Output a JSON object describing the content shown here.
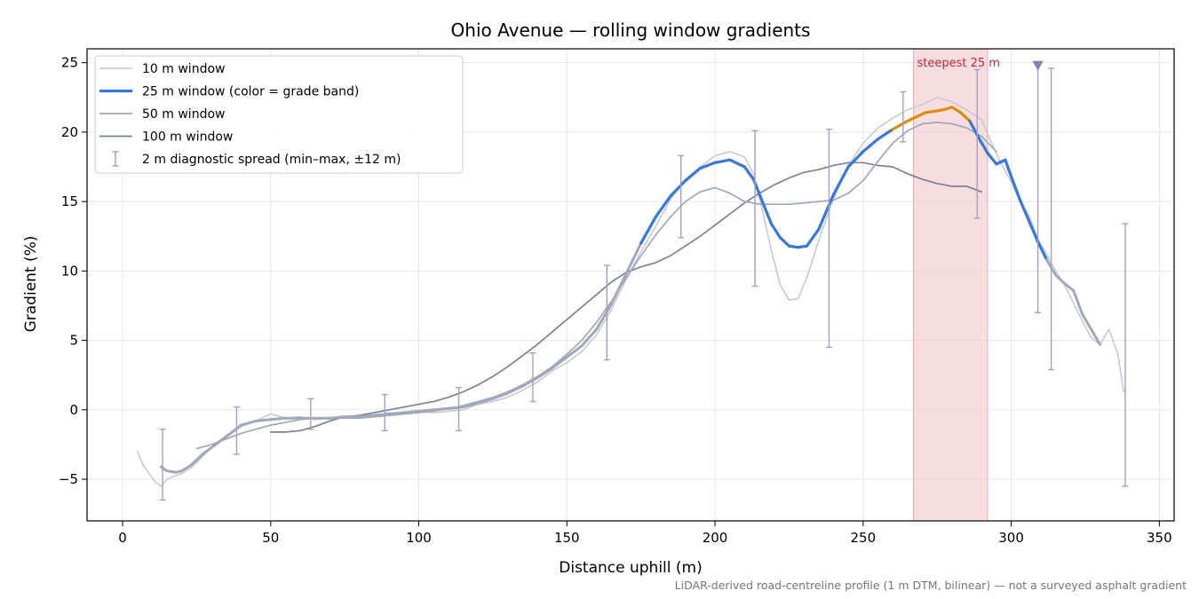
{
  "chart_data": {
    "type": "line",
    "title": "Ohio Avenue — rolling window gradients",
    "xlabel": "Distance uphill (m)",
    "ylabel": "Gradient (%)",
    "xlim": [
      -12,
      355
    ],
    "ylim": [
      -8,
      26
    ],
    "xticks": [
      0,
      50,
      100,
      150,
      200,
      250,
      300,
      350
    ],
    "yticks": [
      -5,
      0,
      5,
      10,
      15,
      20,
      25
    ],
    "grid": true,
    "legend_position": "top-left",
    "footnote": "LiDAR-derived road-centreline profile (1 m DTM, bilinear) — not a surveyed asphalt gradient",
    "steepest_band": {
      "x0": 267,
      "x1": 292,
      "label": "steepest 25 m"
    },
    "marker": {
      "x": 309,
      "y": 24.8
    },
    "colors": {
      "w10": "#c7cad3",
      "w25_normal": "#3a78d6",
      "w25_steep": "#e08c00",
      "w50": "#a1a9b8",
      "w100": "#7c8294",
      "errorbar": "#a79ec4",
      "band": "#f3d2d6",
      "marker": "#8a7fb0"
    },
    "legend": [
      {
        "key": "w10",
        "label": "10 m window"
      },
      {
        "key": "w25",
        "label": "25 m window (color = grade band)"
      },
      {
        "key": "w50",
        "label": "50 m window"
      },
      {
        "key": "w100",
        "label": "100 m window"
      },
      {
        "key": "err",
        "label": "2 m diagnostic spread (min–max, ±12 m)"
      }
    ],
    "series": [
      {
        "name": "10 m window",
        "x": [
          5,
          7,
          9,
          11,
          13,
          15,
          17,
          20,
          23,
          26,
          30,
          35,
          40,
          45,
          50,
          55,
          60,
          65,
          70,
          75,
          80,
          85,
          90,
          95,
          100,
          105,
          110,
          115,
          120,
          125,
          130,
          135,
          140,
          145,
          150,
          155,
          160,
          165,
          170,
          175,
          180,
          185,
          190,
          195,
          200,
          205,
          210,
          213,
          216,
          219,
          222,
          225,
          228,
          231,
          235,
          240,
          245,
          250,
          255,
          260,
          265,
          270,
          275,
          280,
          285,
          290,
          293,
          296,
          300,
          303,
          306,
          309,
          312,
          315,
          318,
          321,
          324,
          327,
          330,
          333,
          336,
          338
        ],
        "y": [
          -3.0,
          -4.0,
          -4.6,
          -5.2,
          -5.5,
          -5.0,
          -4.8,
          -4.6,
          -4.2,
          -3.6,
          -2.7,
          -2.0,
          -1.2,
          -0.8,
          -0.3,
          -0.6,
          -0.5,
          -0.7,
          -0.6,
          -0.5,
          -0.6,
          -0.4,
          -0.2,
          -0.3,
          -0.1,
          -0.2,
          -0.1,
          0.0,
          0.4,
          0.6,
          0.9,
          1.4,
          2.0,
          2.8,
          3.4,
          4.2,
          5.4,
          7.2,
          9.4,
          11.4,
          13.2,
          15.2,
          16.6,
          17.5,
          18.3,
          18.6,
          18.2,
          17.0,
          14.4,
          11.5,
          9.0,
          7.9,
          8.0,
          9.5,
          12.2,
          15.2,
          17.6,
          19.2,
          20.3,
          21.0,
          21.6,
          22.0,
          22.5,
          22.2,
          21.6,
          20.9,
          19.4,
          18.0,
          16.4,
          15.0,
          14.0,
          12.3,
          11.2,
          10.0,
          9.0,
          7.7,
          6.4,
          5.2,
          4.7,
          5.8,
          4.0,
          1.3
        ]
      },
      {
        "name": "25 m window (color = grade band)",
        "x": [
          13,
          15,
          18,
          20,
          23,
          27,
          32,
          37,
          40,
          45,
          50,
          55,
          60,
          65,
          70,
          75,
          80,
          85,
          90,
          95,
          100,
          105,
          110,
          115,
          120,
          125,
          130,
          135,
          140,
          145,
          150,
          155,
          160,
          165,
          170,
          175,
          180,
          185,
          190,
          195,
          200,
          205,
          210,
          213,
          216,
          219,
          222,
          225,
          228,
          231,
          235,
          240,
          245,
          250,
          255,
          260,
          265,
          268,
          271,
          274,
          277,
          280,
          283,
          286,
          289,
          292,
          295,
          298,
          300,
          303,
          306,
          309,
          312,
          315,
          318,
          321,
          324,
          327,
          330
        ],
        "y": [
          -4.1,
          -4.4,
          -4.5,
          -4.4,
          -4.0,
          -3.2,
          -2.4,
          -1.6,
          -1.1,
          -0.8,
          -0.7,
          -0.6,
          -0.6,
          -0.6,
          -0.6,
          -0.5,
          -0.5,
          -0.4,
          -0.3,
          -0.2,
          -0.1,
          0.0,
          0.1,
          0.2,
          0.5,
          0.8,
          1.2,
          1.7,
          2.3,
          3.0,
          3.8,
          4.6,
          5.8,
          7.6,
          9.8,
          12.0,
          13.9,
          15.4,
          16.5,
          17.4,
          17.8,
          18.0,
          17.5,
          16.6,
          15.0,
          13.4,
          12.4,
          11.8,
          11.7,
          11.8,
          13.0,
          15.5,
          17.5,
          18.6,
          19.5,
          20.2,
          20.8,
          21.1,
          21.4,
          21.5,
          21.6,
          21.8,
          21.4,
          20.8,
          19.6,
          18.5,
          17.7,
          18.0,
          16.8,
          15.1,
          13.6,
          12.1,
          10.8,
          9.7,
          9.1,
          8.6,
          6.9,
          5.8,
          4.7
        ]
      },
      {
        "name": "50 m window",
        "x": [
          25,
          30,
          35,
          40,
          45,
          50,
          55,
          60,
          65,
          70,
          75,
          80,
          85,
          90,
          95,
          100,
          105,
          110,
          115,
          120,
          125,
          130,
          135,
          140,
          145,
          150,
          155,
          160,
          165,
          170,
          175,
          180,
          185,
          190,
          195,
          200,
          205,
          210,
          215,
          220,
          225,
          230,
          235,
          240,
          245,
          250,
          255,
          260,
          265,
          270,
          275,
          280,
          285,
          290,
          295
        ],
        "y": [
          -2.8,
          -2.5,
          -2.1,
          -1.7,
          -1.4,
          -1.1,
          -0.9,
          -0.7,
          -0.6,
          -0.6,
          -0.6,
          -0.6,
          -0.5,
          -0.4,
          -0.3,
          -0.2,
          -0.1,
          0.1,
          0.3,
          0.6,
          0.9,
          1.3,
          1.8,
          2.4,
          3.1,
          4.0,
          5.0,
          6.3,
          7.8,
          9.5,
          11.1,
          12.6,
          13.9,
          15.0,
          15.7,
          16.0,
          15.6,
          15.0,
          14.8,
          14.8,
          14.8,
          14.9,
          15.0,
          15.1,
          15.6,
          16.5,
          17.9,
          19.2,
          20.1,
          20.6,
          20.7,
          20.6,
          20.3,
          19.7,
          18.6
        ]
      },
      {
        "name": "100 m window",
        "x": [
          50,
          55,
          60,
          65,
          70,
          75,
          80,
          85,
          90,
          95,
          100,
          105,
          110,
          115,
          120,
          125,
          130,
          135,
          140,
          145,
          150,
          155,
          160,
          165,
          170,
          175,
          180,
          185,
          190,
          195,
          200,
          205,
          210,
          215,
          220,
          225,
          230,
          235,
          240,
          245,
          250,
          255,
          260,
          265,
          270,
          275,
          280,
          285,
          290
        ],
        "y": [
          -1.6,
          -1.6,
          -1.5,
          -1.2,
          -0.8,
          -0.5,
          -0.4,
          -0.2,
          0.0,
          0.2,
          0.4,
          0.6,
          0.9,
          1.3,
          1.8,
          2.4,
          3.1,
          3.9,
          4.7,
          5.6,
          6.5,
          7.4,
          8.3,
          9.2,
          9.9,
          10.3,
          10.6,
          11.1,
          11.8,
          12.5,
          13.3,
          14.1,
          14.9,
          15.6,
          16.2,
          16.7,
          17.1,
          17.3,
          17.6,
          17.8,
          17.8,
          17.6,
          17.5,
          17.0,
          16.6,
          16.3,
          16.1,
          16.1,
          15.7
        ]
      }
    ],
    "errorbars": [
      {
        "x": 13.5,
        "low": -6.5,
        "high": -1.4
      },
      {
        "x": 38.5,
        "low": -3.2,
        "high": 0.2
      },
      {
        "x": 63.5,
        "low": -1.4,
        "high": 0.8
      },
      {
        "x": 88.5,
        "low": -1.5,
        "high": 1.1
      },
      {
        "x": 113.5,
        "low": -1.5,
        "high": 1.6
      },
      {
        "x": 138.5,
        "low": 0.6,
        "high": 4.1
      },
      {
        "x": 163.5,
        "low": 3.6,
        "high": 10.4
      },
      {
        "x": 188.5,
        "low": 12.4,
        "high": 18.3
      },
      {
        "x": 213.5,
        "low": 8.9,
        "high": 20.1
      },
      {
        "x": 238.5,
        "low": 4.5,
        "high": 20.2
      },
      {
        "x": 263.5,
        "low": 19.3,
        "high": 22.9
      },
      {
        "x": 288.5,
        "low": 13.8,
        "high": 24.5
      },
      {
        "x": 309.0,
        "low": 7.0,
        "high": 24.8
      },
      {
        "x": 313.5,
        "low": 2.9,
        "high": 24.6
      },
      {
        "x": 338.5,
        "low": -5.5,
        "high": 13.4
      }
    ]
  }
}
